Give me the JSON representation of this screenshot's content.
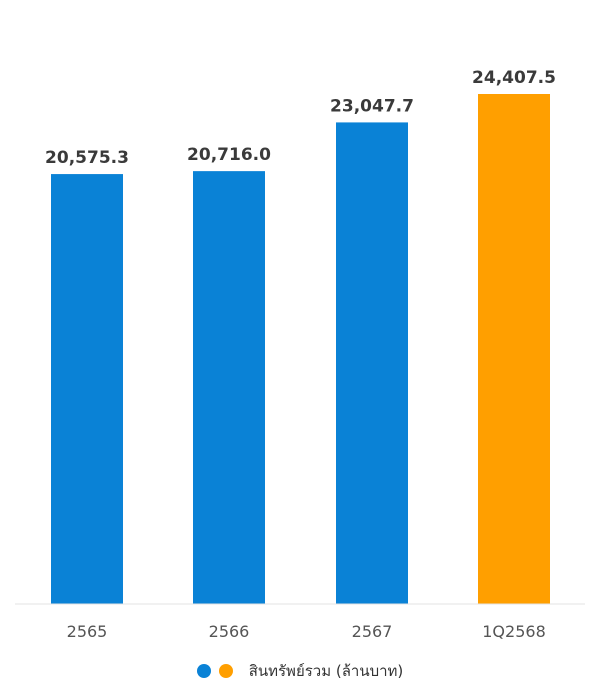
{
  "chart_data": {
    "type": "bar",
    "categories": [
      "2565",
      "2566",
      "2567",
      "1Q2568"
    ],
    "values": [
      20575.3,
      20716.0,
      23047.7,
      24407.5
    ],
    "value_labels": [
      "20,575.3",
      "20,716.0",
      "23,047.7",
      "24,407.5"
    ],
    "bar_colors": [
      "#0a82d6",
      "#0a82d6",
      "#0a82d6",
      "#ff9f00"
    ],
    "legend": {
      "label": "สินทรัพย์รวม (ล้านบาท)",
      "dot_colors": [
        "#0a82d6",
        "#ff9f00"
      ],
      "placement": "bottom-center"
    },
    "grid": false
  }
}
